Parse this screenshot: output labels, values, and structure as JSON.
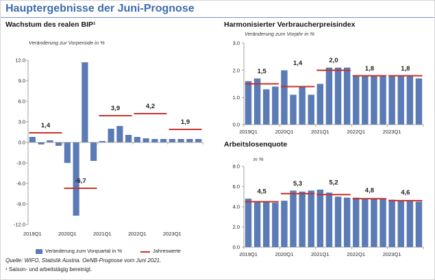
{
  "title": "Hauptergebnisse der Juni-Prognose",
  "colors": {
    "title": "#3d6bad",
    "bars": "#5a7bb5",
    "annual_line": "#c8322c",
    "axis": "#8c8c8c"
  },
  "chart_data": [
    {
      "type": "bar",
      "title": "Wachstum des realen BIP¹",
      "subtitle": "Veränderung zur Vorperiode in %",
      "x_tick_labels": [
        "2019Q1",
        "2020Q1",
        "2021Q1",
        "2022Q1",
        "2023Q1"
      ],
      "y_tick_labels": [
        "12.0",
        "9.0",
        "6.0",
        "3.0",
        "0.0",
        "-3.0",
        "-6.0",
        "-9.0",
        "-12.0"
      ],
      "ylim": [
        -12,
        12
      ],
      "series": [
        {
          "name": "Veränderung zum Vorquartal in %",
          "values": [
            0.8,
            -0.3,
            0.3,
            -0.5,
            -3.0,
            -10.7,
            11.7,
            -2.7,
            0.2,
            2.0,
            2.4,
            1.1,
            0.8,
            0.6,
            0.5,
            0.5,
            0.5,
            0.5,
            0.5,
            0.5
          ]
        },
        {
          "name": "Jahreswerte",
          "values": [
            1.4,
            -6.7,
            3.9,
            4.2,
            1.9
          ],
          "labels": [
            "1,4",
            "-6,7",
            "3,9",
            "4,2",
            "1,9"
          ]
        }
      ]
    },
    {
      "type": "bar",
      "title": "Harmonisierter Verbraucherpreisindex",
      "subtitle": "Veränderung zum Vorjahr in %",
      "x_tick_labels": [
        "2019Q1",
        "2020Q1",
        "2021Q1",
        "2022Q1",
        "2023Q1"
      ],
      "y_tick_labels": [
        "3.0",
        "2.0",
        "1.0",
        "0.0"
      ],
      "ylim": [
        0,
        3
      ],
      "series": [
        {
          "values": [
            1.6,
            1.7,
            1.3,
            1.4,
            2.0,
            1.1,
            1.4,
            1.1,
            1.5,
            2.1,
            2.1,
            2.1,
            1.8,
            1.8,
            1.8,
            1.8,
            1.8,
            1.8,
            1.8,
            1.7
          ]
        },
        {
          "values": [
            1.5,
            1.4,
            2.0,
            1.8,
            1.8
          ],
          "labels": [
            "1,5",
            "1,4",
            "2,0",
            "1,8",
            "1,8"
          ]
        }
      ]
    },
    {
      "type": "bar",
      "title": "Arbeitslosenquote",
      "subtitle": "in %",
      "x_tick_labels": [
        "2019Q1",
        "2020Q1",
        "2021Q1",
        "2022Q1",
        "2023Q1"
      ],
      "y_tick_labels": [
        "8.0",
        "6.0",
        "4.0",
        "2.0",
        "0.0"
      ],
      "ylim": [
        0,
        8
      ],
      "series": [
        {
          "values": [
            4.8,
            4.5,
            4.5,
            4.4,
            4.6,
            5.6,
            5.5,
            5.6,
            5.7,
            5.4,
            5.0,
            4.9,
            4.9,
            4.8,
            4.8,
            4.8,
            4.7,
            4.6,
            4.6,
            4.5
          ]
        },
        {
          "values": [
            4.5,
            5.3,
            5.2,
            4.8,
            4.6
          ],
          "labels": [
            "4,5",
            "5,3",
            "5,2",
            "4,8",
            "4,6"
          ]
        }
      ]
    }
  ],
  "source": "Quelle: WIFO, Statistik Austria. OeNB-Prognose vom Juni 2021.",
  "footnote": "¹ Saison- und arbeitstägig bereinigt."
}
